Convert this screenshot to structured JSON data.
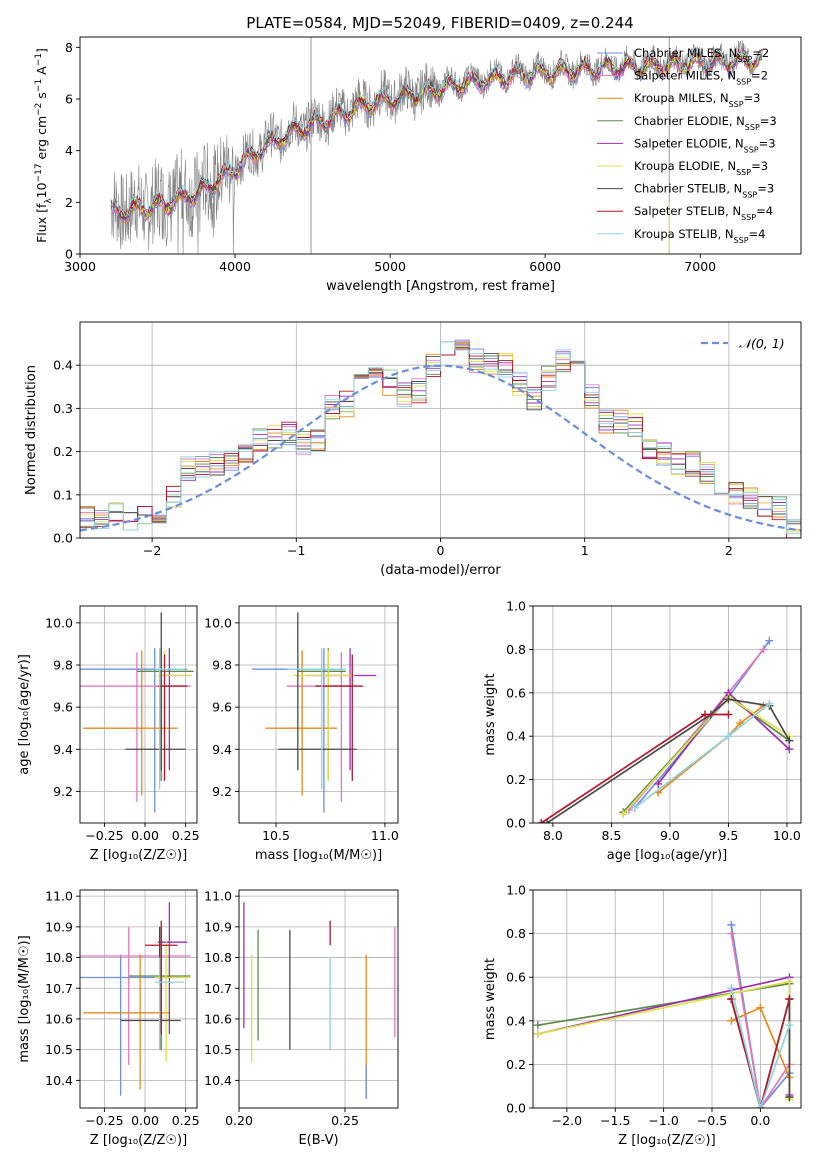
{
  "figure": {
    "title": "PLATE=0584, MJD=52049, FIBERID=0409, z=0.244"
  },
  "legend_entries": [
    {
      "label": "Chabrier MILES, N",
      "sub": "SSP",
      "suffix": "=2",
      "color": "#6d8fe0"
    },
    {
      "label": "Salpeter MILES, N",
      "sub": "SSP",
      "suffix": "=2",
      "color": "#e377c2"
    },
    {
      "label": "Kroupa MILES, N",
      "sub": "SSP",
      "suffix": "=3",
      "color": "#e6891f"
    },
    {
      "label": "Chabrier ELODIE, N",
      "sub": "SSP",
      "suffix": "=3",
      "color": "#5c8a4c"
    },
    {
      "label": "Salpeter ELODIE, N",
      "sub": "SSP",
      "suffix": "=3",
      "color": "#9b30b0"
    },
    {
      "label": "Kroupa ELODIE, N",
      "sub": "SSP",
      "suffix": "=3",
      "color": "#dde04a"
    },
    {
      "label": "Chabrier STELIB, N",
      "sub": "SSP",
      "suffix": "=3",
      "color": "#4a4a4a"
    },
    {
      "label": "Salpeter STELIB, N",
      "sub": "SSP",
      "suffix": "=4",
      "color": "#b2182b"
    },
    {
      "label": "Kroupa STELIB, N",
      "sub": "SSP",
      "suffix": "=4",
      "color": "#8fd3e0"
    }
  ],
  "chart_data": [
    {
      "id": "spectrum",
      "type": "line",
      "title": "PLATE=0584, MJD=52049, FIBERID=0409, z=0.244",
      "xlabel": "wavelength [Angstrom, rest frame]",
      "ylabel_parts": [
        "Flux [f",
        "λ",
        "10",
        "−17",
        " erg cm",
        "−2",
        " s",
        "−1",
        " A",
        "−1",
        "]"
      ],
      "xlim": [
        3000,
        7650
      ],
      "ylim": [
        0,
        8.4
      ],
      "xticks": [
        "3000",
        "4000",
        "5000",
        "6000",
        "7000"
      ],
      "yticks": [
        "0",
        "2",
        "4",
        "6",
        "8"
      ],
      "data_color": "#808080",
      "model_envelope": {
        "x": [
          3200,
          3400,
          3600,
          3800,
          4000,
          4200,
          4400,
          4600,
          4800,
          5000,
          5200,
          5400,
          5600,
          5800,
          6000,
          6200,
          6400,
          6600,
          6800,
          7000,
          7200,
          7400
        ],
        "y": [
          1.7,
          1.85,
          2.1,
          2.6,
          3.4,
          4.3,
          4.9,
          5.3,
          5.8,
          6.1,
          6.3,
          6.6,
          6.8,
          7.0,
          7.1,
          7.2,
          7.3,
          7.35,
          7.4,
          7.5,
          7.55,
          7.6
        ]
      }
    },
    {
      "id": "residuals",
      "type": "line",
      "xlabel": "(data-model)/error",
      "ylabel": "Normed distribution",
      "xlim": [
        -2.5,
        2.5
      ],
      "ylim": [
        0,
        0.5
      ],
      "xticks": [
        "−2",
        "−1",
        "0",
        "1",
        "2"
      ],
      "yticks": [
        "0.0",
        "0.1",
        "0.2",
        "0.3",
        "0.4"
      ],
      "grid": true,
      "legend": {
        "label": "𝒩(0, 1)",
        "color": "#6a8fd8",
        "placement": "top-right"
      },
      "bin_width": 0.1,
      "histogram_profile": [
        0.05,
        0.04,
        0.06,
        0.04,
        0.05,
        0.06,
        0.1,
        0.16,
        0.16,
        0.17,
        0.18,
        0.2,
        0.23,
        0.23,
        0.24,
        0.22,
        0.22,
        0.3,
        0.31,
        0.38,
        0.39,
        0.36,
        0.33,
        0.34,
        0.4,
        0.43,
        0.45,
        0.41,
        0.4,
        0.4,
        0.36,
        0.32,
        0.37,
        0.41,
        0.39,
        0.33,
        0.27,
        0.27,
        0.26,
        0.21,
        0.19,
        0.17,
        0.17,
        0.15,
        0.12,
        0.1,
        0.09,
        0.07,
        0.07,
        0.02
      ]
    },
    {
      "id": "age_vs_z",
      "type": "scatter",
      "xlabel": "Z [log₁₀(Z/Z☉)]",
      "ylabel": "age  [log₁₀(age/yr)]",
      "xlim": [
        -0.4,
        0.32
      ],
      "ylim": [
        9.05,
        10.08
      ],
      "xticks": [
        "−0.25",
        "0.00",
        "0.25"
      ],
      "yticks": [
        "9.2",
        "9.4",
        "9.6",
        "9.8",
        "10.0"
      ],
      "grid": true,
      "points": [
        {
          "x": 0.06,
          "y": 9.78,
          "ex": [
            -0.42,
            0.26
          ],
          "ey": [
            9.1,
            9.88
          ],
          "color": "#6d8fe0"
        },
        {
          "x": -0.05,
          "y": 9.7,
          "ex": [
            -0.42,
            0.28
          ],
          "ey": [
            9.15,
            9.86
          ],
          "color": "#e377c2"
        },
        {
          "x": -0.02,
          "y": 9.5,
          "ex": [
            -0.38,
            0.2
          ],
          "ey": [
            9.18,
            9.87
          ],
          "color": "#e6891f"
        },
        {
          "x": 0.1,
          "y": 9.77,
          "ex": [
            -0.05,
            0.3
          ],
          "ey": [
            9.25,
            9.88
          ],
          "color": "#5c8a4c"
        },
        {
          "x": 0.15,
          "y": 9.75,
          "ex": [
            0.1,
            0.28
          ],
          "ey": [
            9.3,
            9.88
          ],
          "color": "#9b30b0"
        },
        {
          "x": 0.12,
          "y": 9.75,
          "ex": [
            0.08,
            0.29
          ],
          "ey": [
            9.25,
            9.87
          ],
          "color": "#dde04a"
        },
        {
          "x": 0.1,
          "y": 9.4,
          "ex": [
            -0.12,
            0.25
          ],
          "ey": [
            9.3,
            10.05
          ],
          "color": "#4a4a4a"
        },
        {
          "x": 0.12,
          "y": 9.7,
          "ex": [
            0.08,
            0.26
          ],
          "ey": [
            9.25,
            9.85
          ],
          "color": "#b2182b"
        },
        {
          "x": 0.09,
          "y": 9.78,
          "ex": [
            0.06,
            0.25
          ],
          "ey": [
            9.21,
            9.88
          ],
          "color": "#8fd3e0"
        }
      ]
    },
    {
      "id": "age_vs_mass",
      "type": "scatter",
      "xlabel": "mass [log₁₀(M/M☉)]",
      "ylabel": "",
      "xlim": [
        10.33,
        11.06
      ],
      "ylim": [
        9.05,
        10.08
      ],
      "xticks": [
        "10.5",
        "11.0"
      ],
      "yticks": [
        "9.2",
        "9.4",
        "9.6",
        "9.8",
        "10.0"
      ],
      "grid": true,
      "points": [
        {
          "x": 10.72,
          "y": 9.78,
          "ex": [
            10.39,
            10.79
          ],
          "ey": [
            9.1,
            9.88
          ],
          "color": "#6d8fe0"
        },
        {
          "x": 10.8,
          "y": 9.7,
          "ex": [
            10.55,
            10.86
          ],
          "ey": [
            9.15,
            9.86
          ],
          "color": "#e377c2"
        },
        {
          "x": 10.62,
          "y": 9.5,
          "ex": [
            10.45,
            10.78
          ],
          "ey": [
            9.18,
            9.87
          ],
          "color": "#e6891f"
        },
        {
          "x": 10.74,
          "y": 9.77,
          "ex": [
            10.6,
            10.82
          ],
          "ey": [
            9.25,
            9.88
          ],
          "color": "#5c8a4c"
        },
        {
          "x": 10.84,
          "y": 9.75,
          "ex": [
            10.64,
            10.96
          ],
          "ey": [
            9.3,
            9.88
          ],
          "color": "#9b30b0"
        },
        {
          "x": 10.74,
          "y": 9.75,
          "ex": [
            10.58,
            10.86
          ],
          "ey": [
            9.25,
            9.87
          ],
          "color": "#dde04a"
        },
        {
          "x": 10.6,
          "y": 9.4,
          "ex": [
            10.51,
            10.87
          ],
          "ey": [
            9.3,
            10.05
          ],
          "color": "#4a4a4a"
        },
        {
          "x": 10.85,
          "y": 9.7,
          "ex": [
            10.68,
            10.9
          ],
          "ey": [
            9.25,
            9.85
          ],
          "color": "#b2182b"
        },
        {
          "x": 10.71,
          "y": 9.78,
          "ex": [
            10.55,
            10.82
          ],
          "ey": [
            9.21,
            9.88
          ],
          "color": "#8fd3e0"
        }
      ]
    },
    {
      "id": "weight_vs_age",
      "type": "line",
      "xlabel": "age  [log₁₀(age/yr)]",
      "ylabel": "mass weight",
      "xlim": [
        7.83,
        10.12
      ],
      "ylim": [
        0,
        1.0
      ],
      "xticks": [
        "8.0",
        "8.5",
        "9.0",
        "9.5",
        "10.0"
      ],
      "yticks": [
        "0.0",
        "0.2",
        "0.4",
        "0.6",
        "0.8",
        "1.0"
      ],
      "grid": true,
      "series": [
        {
          "color": "#6d8fe0",
          "x": [
            8.7,
            9.5,
            9.85
          ],
          "y": [
            0.07,
            0.58,
            0.84
          ]
        },
        {
          "color": "#e377c2",
          "x": [
            8.65,
            9.5,
            9.8
          ],
          "y": [
            0.06,
            0.6,
            0.8
          ]
        },
        {
          "color": "#e6891f",
          "x": [
            8.9,
            9.5,
            9.6,
            9.8
          ],
          "y": [
            0.14,
            0.4,
            0.46,
            0.54
          ]
        },
        {
          "color": "#5c8a4c",
          "x": [
            8.6,
            9.5,
            10.02
          ],
          "y": [
            0.05,
            0.58,
            0.38
          ]
        },
        {
          "color": "#9b30b0",
          "x": [
            8.9,
            9.5,
            10.02
          ],
          "y": [
            0.18,
            0.6,
            0.34
          ]
        },
        {
          "color": "#dde04a",
          "x": [
            8.6,
            9.5,
            10.02
          ],
          "y": [
            0.04,
            0.58,
            0.4
          ]
        },
        {
          "color": "#4a4a4a",
          "x": [
            7.95,
            9.35,
            9.5,
            9.85,
            10.02
          ],
          "y": [
            0.0,
            0.5,
            0.57,
            0.54,
            0.38
          ]
        },
        {
          "color": "#b2182b",
          "x": [
            7.9,
            9.3,
            9.5
          ],
          "y": [
            0.0,
            0.5,
            0.5
          ]
        },
        {
          "color": "#8fd3e0",
          "x": [
            8.7,
            9.5,
            9.85
          ],
          "y": [
            0.07,
            0.4,
            0.55
          ]
        }
      ]
    },
    {
      "id": "mass_vs_z",
      "type": "scatter",
      "xlabel": "Z [log₁₀(Z/Z☉)]",
      "ylabel": "mass [log₁₀(M/M☉)]",
      "xlim": [
        -0.4,
        0.32
      ],
      "ylim": [
        10.31,
        11.02
      ],
      "xticks": [
        "−0.25",
        "0.00",
        "0.25"
      ],
      "yticks": [
        "10.4",
        "10.5",
        "10.6",
        "10.7",
        "10.8",
        "10.9",
        "11.0"
      ],
      "grid": true,
      "points": [
        {
          "x": -0.15,
          "y": 10.735,
          "ex": [
            -0.4,
            0.2
          ],
          "ey": [
            10.35,
            10.81
          ],
          "color": "#6d8fe0"
        },
        {
          "x": -0.1,
          "y": 10.805,
          "ex": [
            -0.4,
            0.28
          ],
          "ey": [
            10.45,
            10.9
          ],
          "color": "#e377c2"
        },
        {
          "x": -0.03,
          "y": 10.62,
          "ex": [
            -0.38,
            0.15
          ],
          "ey": [
            10.37,
            10.81
          ],
          "color": "#e6891f"
        },
        {
          "x": 0.1,
          "y": 10.74,
          "ex": [
            -0.1,
            0.28
          ],
          "ey": [
            10.5,
            10.9
          ],
          "color": "#5c8a4c"
        },
        {
          "x": 0.15,
          "y": 10.85,
          "ex": [
            0.08,
            0.26
          ],
          "ey": [
            10.55,
            10.98
          ],
          "color": "#9b30b0"
        },
        {
          "x": 0.13,
          "y": 10.735,
          "ex": [
            0.06,
            0.28
          ],
          "ey": [
            10.46,
            10.85
          ],
          "color": "#dde04a"
        },
        {
          "x": 0.09,
          "y": 10.595,
          "ex": [
            -0.15,
            0.22
          ],
          "ey": [
            10.5,
            10.9
          ],
          "color": "#4a4a4a"
        },
        {
          "x": 0.1,
          "y": 10.84,
          "ex": [
            0.0,
            0.2
          ],
          "ey": [
            10.55,
            10.92
          ],
          "color": "#b2182b"
        },
        {
          "x": 0.09,
          "y": 10.72,
          "ex": [
            0.06,
            0.24
          ],
          "ey": [
            10.5,
            10.8
          ],
          "color": "#8fd3e0"
        }
      ]
    },
    {
      "id": "ebv",
      "type": "scatter",
      "xlabel": "E(B-V)",
      "ylabel": "",
      "xlim": [
        0.2,
        0.275
      ],
      "ylim": [
        10.31,
        11.02
      ],
      "xticks": [
        "0.20",
        "0.25"
      ],
      "yticks": [
        "10.4",
        "10.5",
        "10.6",
        "10.7",
        "10.8",
        "10.9",
        "11.0"
      ],
      "grid": true,
      "bars": [
        {
          "x": 0.2023,
          "ey": [
            10.57,
            10.98
          ],
          "color": "#9b30b0"
        },
        {
          "x": 0.206,
          "ey": [
            10.46,
            10.81
          ],
          "color": "#dde04a"
        },
        {
          "x": 0.209,
          "ey": [
            10.53,
            10.89
          ],
          "color": "#5c8a4c"
        },
        {
          "x": 0.224,
          "ey": [
            10.5,
            10.89
          ],
          "color": "#4a4a4a"
        },
        {
          "x": 0.243,
          "ey": [
            10.5,
            10.8
          ],
          "color": "#8fd3e0"
        },
        {
          "x": 0.243,
          "ey": [
            10.84,
            10.92
          ],
          "color": "#b2182b"
        },
        {
          "x": 0.26,
          "ey": [
            10.34,
            10.81
          ],
          "color": "#e6891f"
        },
        {
          "x": 0.26,
          "ey": [
            10.34,
            10.45
          ],
          "color": "#6d8fe0"
        },
        {
          "x": 0.2735,
          "ey": [
            10.54,
            10.9
          ],
          "color": "#e377c2"
        }
      ]
    },
    {
      "id": "weight_vs_z",
      "type": "line",
      "xlabel": "Z [log₁₀(Z/Z☉)]",
      "ylabel": "mass weight",
      "xlim": [
        -2.35,
        0.42
      ],
      "ylim": [
        0,
        1.0
      ],
      "xticks": [
        "−2.0",
        "−1.5",
        "−1.0",
        "−0.5",
        "0.0"
      ],
      "yticks": [
        "0.0",
        "0.2",
        "0.4",
        "0.6",
        "0.8",
        "1.0"
      ],
      "grid": true,
      "series": [
        {
          "color": "#6d8fe0",
          "x": [
            -0.3,
            0.0,
            0.3
          ],
          "y": [
            0.84,
            0.0,
            0.16
          ]
        },
        {
          "color": "#e377c2",
          "x": [
            -0.3,
            0.0,
            0.3
          ],
          "y": [
            0.8,
            0.0,
            0.2
          ]
        },
        {
          "color": "#e6891f",
          "x": [
            -0.3,
            0.0,
            0.3,
            0.3
          ],
          "y": [
            0.4,
            0.46,
            0.14,
            0.05
          ]
        },
        {
          "color": "#5c8a4c",
          "x": [
            -2.3,
            0.3,
            0.3
          ],
          "y": [
            0.38,
            0.57,
            0.05
          ]
        },
        {
          "color": "#9b30b0",
          "x": [
            -2.3,
            0.3,
            0.3
          ],
          "y": [
            0.34,
            0.6,
            0.06
          ]
        },
        {
          "color": "#dde04a",
          "x": [
            -2.3,
            0.3,
            0.3
          ],
          "y": [
            0.34,
            0.58,
            0.04
          ]
        },
        {
          "color": "#4a4a4a",
          "x": [
            -0.3,
            0.0,
            0.3,
            0.3
          ],
          "y": [
            0.5,
            0.0,
            0.5,
            0.05
          ]
        },
        {
          "color": "#b2182b",
          "x": [
            -0.3,
            0.0,
            0.3
          ],
          "y": [
            0.5,
            0.0,
            0.5
          ]
        },
        {
          "color": "#8fd3e0",
          "x": [
            -0.3,
            0.0,
            0.3
          ],
          "y": [
            0.55,
            0.0,
            0.38
          ]
        }
      ]
    }
  ]
}
